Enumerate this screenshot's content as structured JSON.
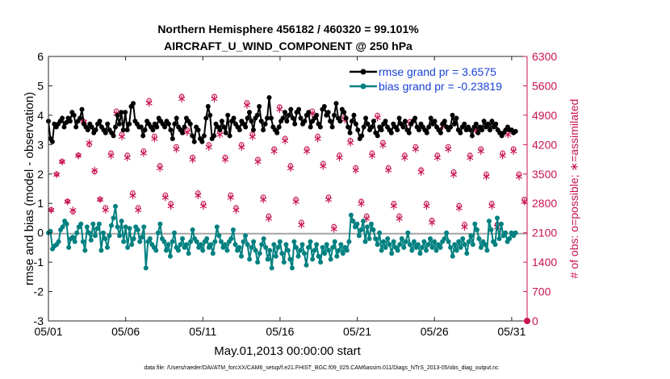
{
  "chart_data": {
    "type": "line",
    "title": "Northern Hemisphere 456182 / 460320 = 99.101%",
    "subtitle": "AIRCRAFT_U_WIND_COMPONENT @ 250 hPa",
    "xlabel": "May.01,2013 00:00:00 start",
    "ylabel": "rmse and bias (model - observation)",
    "y2label": "# of obs: o=possible; ∗=assimilated",
    "footer": "data file: /Users/raeder/DAI/ATM_forcXX/CAM6_setup/f.e21.FHIST_BGC.f09_025.CAM6assim.011/Diags_NTrS_2013-05/obs_diag_output.nc",
    "xlim": [
      1,
      32
    ],
    "ylim": [
      -3,
      6
    ],
    "y2lim": [
      0,
      6300
    ],
    "x_ticks": [
      {
        "value": 1,
        "label": "05/01"
      },
      {
        "value": 6,
        "label": "05/06"
      },
      {
        "value": 11,
        "label": "05/11"
      },
      {
        "value": 16,
        "label": "05/16"
      },
      {
        "value": 21,
        "label": "05/21"
      },
      {
        "value": 26,
        "label": "05/26"
      },
      {
        "value": 31,
        "label": "05/31"
      }
    ],
    "y_ticks": [
      "-3",
      "-2",
      "-1",
      "0",
      "1",
      "2",
      "3",
      "4",
      "5",
      "6"
    ],
    "y2_ticks": [
      "0",
      "700",
      "1400",
      "2100",
      "2800",
      "3500",
      "4200",
      "4900",
      "5600",
      "6300"
    ],
    "series": [
      {
        "name": "rmse",
        "legend": "rmse grand pr = 3.6575",
        "color": "#000000",
        "values": [
          3.8,
          3.2,
          3.1,
          3.7,
          3.6,
          3.7,
          3.8,
          3.9,
          3.6,
          3.75,
          3.9,
          3.8,
          4.1,
          4.0,
          3.6,
          3.8,
          3.9,
          4.2,
          3.7,
          3.6,
          3.5,
          3.7,
          3.6,
          3.4,
          3.5,
          3.7,
          3.8,
          3.6,
          3.5,
          3.4,
          3.7,
          3.5,
          3.4,
          3.3,
          3.6,
          4.0,
          3.7,
          4.1,
          3.5,
          4.1,
          3.5,
          3.7,
          4.3,
          4.4,
          3.8,
          3.7,
          3.6,
          3.6,
          3.3,
          3.5,
          3.8,
          3.7,
          3.6,
          3.5,
          3.7,
          3.6,
          3.9,
          3.8,
          3.7,
          3.6,
          3.8,
          3.7,
          3.5,
          3.2,
          3.7,
          3.9,
          3.6,
          3.5,
          3.4,
          3.6,
          3.9,
          3.8,
          3.7,
          3.3,
          3.1,
          3.6,
          3.5,
          3.2,
          3.1,
          3.3,
          3.9,
          4.3,
          4.0,
          3.2,
          3.3,
          3.7,
          3.6,
          3.5,
          3.8,
          3.6,
          3.4,
          4.0,
          3.3,
          3.8,
          3.9,
          3.7,
          3.6,
          3.5,
          3.8,
          3.7,
          3.6,
          3.9,
          4.1,
          3.8,
          3.5,
          3.9,
          4.0,
          4.3,
          3.8,
          3.5,
          3.7,
          3.9,
          4.6,
          3.9,
          3.6,
          3.5,
          3.4,
          3.6,
          3.8,
          3.9,
          4.1,
          3.8,
          4.0,
          4.2,
          3.9,
          3.7,
          4.1,
          4.2,
          3.9,
          3.7,
          3.8,
          4.0,
          4.1,
          3.6,
          3.8,
          3.9,
          4.0,
          3.7,
          3.6,
          4.2,
          4.3,
          4.0,
          4.1,
          3.8,
          3.6,
          4.0,
          4.4,
          3.9,
          3.8,
          4.2,
          4.1,
          3.9,
          3.6,
          3.4,
          3.8,
          4.0,
          3.7,
          3.5,
          3.2,
          3.3,
          3.6,
          3.9,
          3.7,
          3.5,
          3.6,
          3.8,
          3.4,
          3.3,
          3.6,
          3.5,
          3.7,
          3.8,
          3.6,
          3.5,
          3.4,
          3.7,
          3.6,
          3.5,
          3.9,
          3.7,
          3.6,
          3.8,
          3.5,
          3.4,
          3.7,
          3.8,
          3.9,
          3.6,
          3.5,
          3.7,
          3.6,
          3.5,
          3.4,
          3.6,
          3.9,
          3.7,
          3.8,
          3.6,
          3.5,
          3.4,
          3.7,
          3.8,
          3.6,
          3.5,
          3.6,
          4.0,
          3.7,
          3.9,
          3.5,
          3.4,
          3.6,
          3.7,
          3.5,
          3.6,
          3.5,
          3.3,
          3.6,
          3.7,
          3.4,
          3.6,
          3.5,
          3.8,
          3.6,
          3.7,
          3.5,
          3.8,
          3.6,
          3.7,
          3.5,
          3.4,
          3.3,
          3.4,
          3.5,
          3.6,
          3.5,
          3.5,
          3.4,
          3.45
        ]
      },
      {
        "name": "bias",
        "legend": "bias grand pr = -0.23819",
        "color": "#008080",
        "values": [
          0.0,
          0.05,
          -0.55,
          -0.45,
          -0.4,
          -0.3,
          0.1,
          0.2,
          0.4,
          0.3,
          -0.5,
          -0.2,
          -0.15,
          -0.3,
          0.0,
          0.2,
          0.3,
          -0.3,
          -0.6,
          0.2,
          0.0,
          -0.25,
          0.3,
          -0.1,
          0.15,
          0.3,
          -0.6,
          0.0,
          -0.2,
          -0.5,
          -0.1,
          0.25,
          0.5,
          0.9,
          0.2,
          -0.1,
          0.4,
          -0.3,
          0.2,
          -0.5,
          0.15,
          -0.4,
          -0.2,
          0.2,
          0.1,
          -0.3,
          -0.15,
          0.2,
          -1.2,
          -0.3,
          -0.2,
          -0.4,
          -0.5,
          -0.6,
          0.0,
          0.3,
          -0.2,
          -0.3,
          -0.6,
          -0.4,
          -0.8,
          -0.3,
          0.0,
          -0.5,
          -0.6,
          -0.4,
          -0.2,
          -0.5,
          -0.4,
          -0.7,
          -0.3,
          0.1,
          -0.2,
          -0.3,
          -0.5,
          -0.4,
          -0.6,
          -0.3,
          -0.2,
          -0.5,
          -0.4,
          -0.7,
          -0.3,
          0.2,
          -0.1,
          -0.3,
          -0.5,
          -0.4,
          -0.6,
          -0.3,
          -0.2,
          0.1,
          -0.4,
          -0.6,
          -0.5,
          -0.8,
          -0.3,
          -0.1,
          -0.4,
          -0.9,
          -0.5,
          -0.3,
          -0.6,
          -1.0,
          -0.7,
          -0.4,
          -0.2,
          -0.5,
          -0.9,
          -0.6,
          -1.2,
          -0.4,
          -0.8,
          -0.5,
          -0.3,
          -0.7,
          -1.0,
          -0.4,
          -0.6,
          -0.9,
          -1.2,
          -0.3,
          -0.5,
          -0.8,
          -0.6,
          -0.4,
          -0.7,
          -1.1,
          -0.5,
          -0.3,
          -0.9,
          -0.6,
          -0.4,
          -0.8,
          -1.0,
          -0.5,
          -0.7,
          -0.4,
          -0.6,
          -0.9,
          -0.5,
          -0.3,
          -0.8,
          -0.6,
          -0.4,
          -0.7,
          -0.5,
          -0.6,
          -0.3,
          0.6,
          0.4,
          0.2,
          0.3,
          -0.1,
          0.1,
          0.4,
          -0.3,
          0.2,
          -0.2,
          0.3,
          0.1,
          -0.2,
          -0.4,
          0.0,
          -0.6,
          -0.3,
          -0.5,
          -0.2,
          -0.4,
          -0.7,
          -0.3,
          -0.5,
          -0.6,
          -0.4,
          -0.2,
          -0.5,
          -0.3,
          0.0,
          -0.4,
          -0.6,
          -0.3,
          -0.5,
          -0.4,
          -0.7,
          -0.5,
          -0.3,
          -0.6,
          -0.4,
          -0.2,
          -0.5,
          -0.3,
          -0.6,
          -0.4,
          -0.5,
          -0.3,
          -0.2,
          0.0,
          -0.3,
          -0.5,
          -0.8,
          -0.4,
          -0.6,
          -0.3,
          -0.5,
          -0.2,
          -0.4,
          -0.7,
          -0.3,
          -0.1,
          -0.4,
          0.3,
          0.1,
          -0.2,
          -0.5,
          -0.3,
          -0.4,
          -0.6,
          0.4,
          0.1,
          -0.3,
          -0.4,
          0.5,
          -0.2,
          0.3,
          -0.1,
          0.0,
          -0.3,
          -0.2,
          0.0,
          -0.1,
          0.0
        ]
      }
    ],
    "legend": [
      {
        "label": "rmse grand pr = 3.6575",
        "color": "#000000"
      },
      {
        "label": "bias grand pr = -0.23819",
        "color": "#008080"
      }
    ],
    "obs_counts": {
      "color": "#c8144f",
      "possible_values": [
        2650,
        3500,
        3800,
        2850,
        2600,
        3950,
        4750,
        4200,
        3550,
        2900,
        2700,
        4000,
        5000,
        4450,
        3950,
        3050,
        2700,
        4050,
        5250,
        4400,
        3700,
        3000,
        2800,
        4150,
        5350,
        4550,
        3900,
        3050,
        2800,
        4200,
        5350,
        4500,
        3900,
        3000,
        2700,
        4200,
        5200,
        4450,
        3850,
        2950,
        2500,
        4100,
        5100,
        4350,
        3700,
        2900,
        2350,
        4100,
        5000,
        4400,
        3750,
        2950,
        2250,
        3950,
        4850,
        4300,
        3650,
        2850,
        2500,
        4000,
        4900,
        4250,
        3650,
        2800,
        2500,
        3950,
        4750,
        4150,
        3600,
        2800,
        2400,
        3950,
        4700,
        4150,
        3550,
        2750,
        2300,
        3950,
        4600,
        4100,
        3500,
        2800,
        2300,
        4000,
        4500,
        4100,
        3500,
        2900
      ],
      "assimilated_values": [
        2650,
        3500,
        3800,
        2850,
        2650,
        3950,
        4750,
        4250,
        3600,
        2900,
        2650,
        3950,
        4950,
        4400,
        3900,
        3000,
        2650,
        4000,
        5200,
        4350,
        3650,
        2950,
        2750,
        4100,
        5300,
        4500,
        3850,
        3000,
        2750,
        4150,
        5300,
        4450,
        3850,
        2950,
        2650,
        4150,
        5150,
        4400,
        3800,
        2900,
        2450,
        4050,
        5050,
        4300,
        3650,
        2850,
        2300,
        4050,
        4950,
        4350,
        3700,
        2900,
        2200,
        3900,
        4800,
        4250,
        3600,
        2800,
        2450,
        3950,
        4850,
        4200,
        3600,
        2750,
        2450,
        3900,
        4700,
        4100,
        3550,
        2750,
        2350,
        3900,
        4650,
        4100,
        3500,
        2700,
        2250,
        3900,
        4550,
        4050,
        3450,
        2750,
        2250,
        3950,
        4450,
        4050,
        3450,
        2850
      ]
    }
  }
}
